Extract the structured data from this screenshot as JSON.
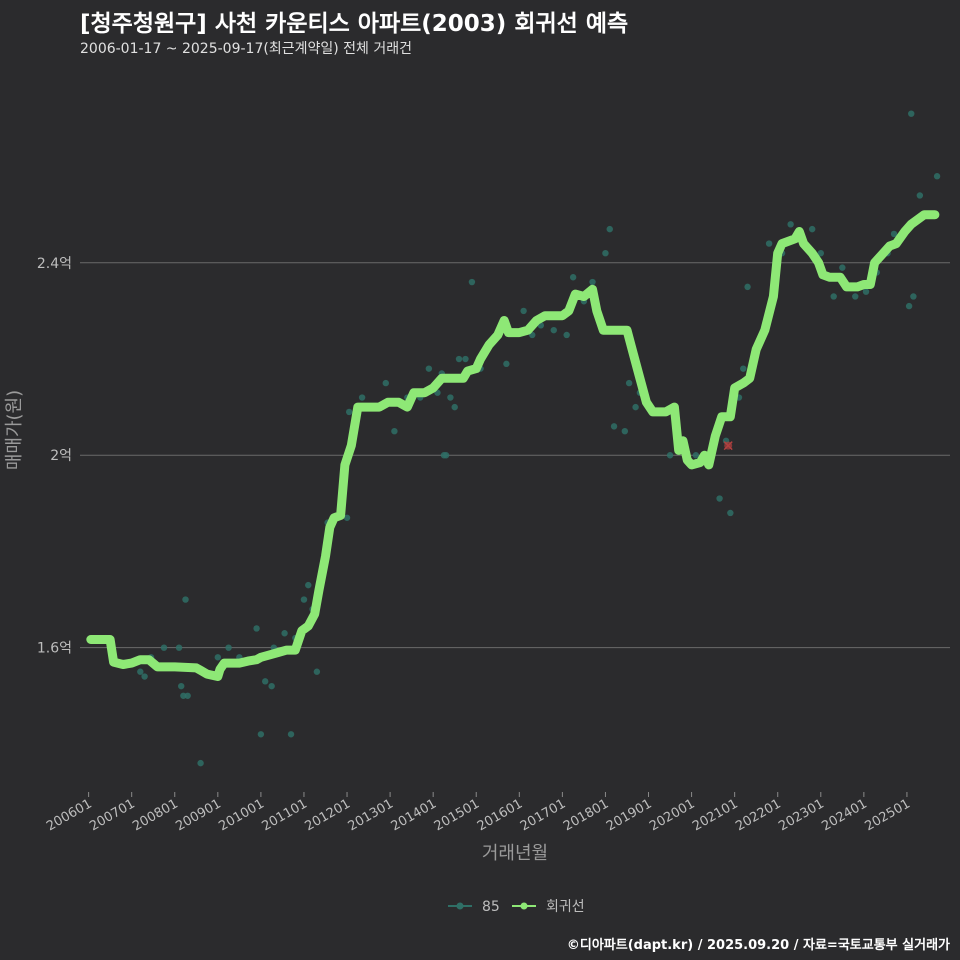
{
  "header": {
    "title": "[청주청원구] 사천 카운티스 아파트(2003) 회귀선 예측",
    "subtitle": "2006-01-17 ~ 2025-09-17(최근계약일) 전체 거래건"
  },
  "footer": {
    "caption": "©디아파트(dapt.kr) / 2025.09.20 / 자료=국토교통부 실거래가"
  },
  "colors": {
    "background": "#2b2b2d",
    "gridline": "#6a6a6a",
    "regression": "#8ee876",
    "scatter": "#2f6f66",
    "outlier": "#b2403f"
  },
  "chart_data": {
    "type": "line",
    "title": "[청주청원구] 사천 카운티스 아파트(2003) 회귀선 예측",
    "xlabel": "거래년월",
    "ylabel": "매매가(원)",
    "ylim": [
      1.3,
      2.78
    ],
    "xlim": [
      2005.8,
      2026.0
    ],
    "y_ticks": [
      {
        "value": 1.6,
        "label": "1.6억"
      },
      {
        "value": 2.0,
        "label": "2억"
      },
      {
        "value": 2.4,
        "label": "2.4억"
      }
    ],
    "x_ticks": [
      {
        "value": 2006,
        "label": "200601"
      },
      {
        "value": 2007,
        "label": "200701"
      },
      {
        "value": 2008,
        "label": "200801"
      },
      {
        "value": 2009,
        "label": "200901"
      },
      {
        "value": 2010,
        "label": "201001"
      },
      {
        "value": 2011,
        "label": "201101"
      },
      {
        "value": 2012,
        "label": "201201"
      },
      {
        "value": 2013,
        "label": "201301"
      },
      {
        "value": 2014,
        "label": "201401"
      },
      {
        "value": 2015,
        "label": "201501"
      },
      {
        "value": 2016,
        "label": "201601"
      },
      {
        "value": 2017,
        "label": "201701"
      },
      {
        "value": 2018,
        "label": "201801"
      },
      {
        "value": 2019,
        "label": "201901"
      },
      {
        "value": 2020,
        "label": "202001"
      },
      {
        "value": 2021,
        "label": "202101"
      },
      {
        "value": 2022,
        "label": "202201"
      },
      {
        "value": 2023,
        "label": "202301"
      },
      {
        "value": 2024,
        "label": "202401"
      },
      {
        "value": 2025,
        "label": "202501"
      }
    ],
    "legend": [
      {
        "name": "85",
        "color": "#2f6f66"
      },
      {
        "name": "회귀선",
        "color": "#8ee876"
      }
    ],
    "series": [
      {
        "name": "회귀선",
        "type": "line",
        "points": [
          [
            2006.05,
            1.617
          ],
          [
            2006.5,
            1.617
          ],
          [
            2006.58,
            1.57
          ],
          [
            2006.8,
            1.565
          ],
          [
            2007.0,
            1.568
          ],
          [
            2007.2,
            1.575
          ],
          [
            2007.4,
            1.575
          ],
          [
            2007.6,
            1.56
          ],
          [
            2008.0,
            1.56
          ],
          [
            2008.5,
            1.558
          ],
          [
            2008.6,
            1.553
          ],
          [
            2008.75,
            1.545
          ],
          [
            2009.0,
            1.54
          ],
          [
            2009.05,
            1.555
          ],
          [
            2009.15,
            1.568
          ],
          [
            2009.5,
            1.568
          ],
          [
            2009.7,
            1.572
          ],
          [
            2009.9,
            1.575
          ],
          [
            2010.0,
            1.58
          ],
          [
            2010.2,
            1.585
          ],
          [
            2010.4,
            1.59
          ],
          [
            2010.6,
            1.595
          ],
          [
            2010.8,
            1.595
          ],
          [
            2010.95,
            1.635
          ],
          [
            2011.1,
            1.645
          ],
          [
            2011.25,
            1.67
          ],
          [
            2011.35,
            1.72
          ],
          [
            2011.5,
            1.79
          ],
          [
            2011.6,
            1.85
          ],
          [
            2011.7,
            1.87
          ],
          [
            2011.85,
            1.875
          ],
          [
            2011.95,
            1.98
          ],
          [
            2012.1,
            2.02
          ],
          [
            2012.25,
            2.1
          ],
          [
            2012.5,
            2.1
          ],
          [
            2012.75,
            2.1
          ],
          [
            2012.95,
            2.11
          ],
          [
            2013.2,
            2.11
          ],
          [
            2013.4,
            2.1
          ],
          [
            2013.55,
            2.13
          ],
          [
            2013.8,
            2.13
          ],
          [
            2014.0,
            2.14
          ],
          [
            2014.2,
            2.16
          ],
          [
            2014.5,
            2.16
          ],
          [
            2014.7,
            2.16
          ],
          [
            2014.8,
            2.175
          ],
          [
            2015.0,
            2.18
          ],
          [
            2015.1,
            2.2
          ],
          [
            2015.3,
            2.23
          ],
          [
            2015.5,
            2.25
          ],
          [
            2015.65,
            2.28
          ],
          [
            2015.75,
            2.255
          ],
          [
            2016.0,
            2.255
          ],
          [
            2016.2,
            2.26
          ],
          [
            2016.4,
            2.28
          ],
          [
            2016.6,
            2.29
          ],
          [
            2016.8,
            2.29
          ],
          [
            2017.0,
            2.29
          ],
          [
            2017.15,
            2.3
          ],
          [
            2017.3,
            2.335
          ],
          [
            2017.5,
            2.33
          ],
          [
            2017.7,
            2.345
          ],
          [
            2017.8,
            2.3
          ],
          [
            2017.95,
            2.26
          ],
          [
            2018.1,
            2.26
          ],
          [
            2018.5,
            2.26
          ],
          [
            2018.65,
            2.21
          ],
          [
            2018.8,
            2.16
          ],
          [
            2018.95,
            2.11
          ],
          [
            2019.1,
            2.09
          ],
          [
            2019.4,
            2.09
          ],
          [
            2019.6,
            2.1
          ],
          [
            2019.7,
            2.01
          ],
          [
            2019.8,
            2.03
          ],
          [
            2019.9,
            1.99
          ],
          [
            2020.0,
            1.98
          ],
          [
            2020.2,
            1.985
          ],
          [
            2020.3,
            2.0
          ],
          [
            2020.4,
            1.98
          ],
          [
            2020.55,
            2.04
          ],
          [
            2020.7,
            2.08
          ],
          [
            2020.9,
            2.08
          ],
          [
            2021.0,
            2.14
          ],
          [
            2021.2,
            2.15
          ],
          [
            2021.35,
            2.16
          ],
          [
            2021.5,
            2.22
          ],
          [
            2021.7,
            2.26
          ],
          [
            2021.9,
            2.33
          ],
          [
            2022.0,
            2.42
          ],
          [
            2022.1,
            2.44
          ],
          [
            2022.4,
            2.45
          ],
          [
            2022.5,
            2.465
          ],
          [
            2022.6,
            2.44
          ],
          [
            2022.8,
            2.42
          ],
          [
            2022.95,
            2.4
          ],
          [
            2023.05,
            2.375
          ],
          [
            2023.2,
            2.37
          ],
          [
            2023.45,
            2.37
          ],
          [
            2023.6,
            2.35
          ],
          [
            2023.85,
            2.35
          ],
          [
            2024.0,
            2.355
          ],
          [
            2024.15,
            2.355
          ],
          [
            2024.25,
            2.4
          ],
          [
            2024.45,
            2.42
          ],
          [
            2024.6,
            2.435
          ],
          [
            2024.75,
            2.44
          ],
          [
            2024.95,
            2.465
          ],
          [
            2025.1,
            2.48
          ],
          [
            2025.25,
            2.49
          ],
          [
            2025.4,
            2.5
          ],
          [
            2025.65,
            2.5
          ]
        ]
      },
      {
        "name": "85",
        "type": "scatter",
        "points": [
          [
            2006.4,
            1.62
          ],
          [
            2007.2,
            1.55
          ],
          [
            2007.3,
            1.54
          ],
          [
            2007.45,
            1.58
          ],
          [
            2007.75,
            1.6
          ],
          [
            2008.1,
            1.6
          ],
          [
            2008.15,
            1.52
          ],
          [
            2008.2,
            1.5
          ],
          [
            2008.25,
            1.7
          ],
          [
            2008.3,
            1.5
          ],
          [
            2008.6,
            1.36
          ],
          [
            2009.0,
            1.58
          ],
          [
            2009.25,
            1.6
          ],
          [
            2009.5,
            1.58
          ],
          [
            2009.9,
            1.64
          ],
          [
            2010.0,
            1.42
          ],
          [
            2010.1,
            1.53
          ],
          [
            2010.25,
            1.52
          ],
          [
            2010.3,
            1.6
          ],
          [
            2010.55,
            1.63
          ],
          [
            2010.7,
            1.42
          ],
          [
            2010.8,
            1.62
          ],
          [
            2011.0,
            1.7
          ],
          [
            2011.1,
            1.73
          ],
          [
            2011.2,
            1.68
          ],
          [
            2011.3,
            1.55
          ],
          [
            2011.55,
            1.86
          ],
          [
            2012.0,
            1.87
          ],
          [
            2012.05,
            2.09
          ],
          [
            2012.35,
            2.12
          ],
          [
            2012.6,
            2.1
          ],
          [
            2012.9,
            2.15
          ],
          [
            2013.1,
            2.05
          ],
          [
            2013.4,
            2.12
          ],
          [
            2013.7,
            2.12
          ],
          [
            2013.9,
            2.18
          ],
          [
            2014.1,
            2.13
          ],
          [
            2014.2,
            2.17
          ],
          [
            2014.25,
            2.0
          ],
          [
            2014.3,
            2.0
          ],
          [
            2014.4,
            2.12
          ],
          [
            2014.5,
            2.1
          ],
          [
            2014.6,
            2.2
          ],
          [
            2014.75,
            2.2
          ],
          [
            2014.9,
            2.36
          ],
          [
            2015.1,
            2.18
          ],
          [
            2015.5,
            2.25
          ],
          [
            2015.7,
            2.19
          ],
          [
            2016.1,
            2.3
          ],
          [
            2016.3,
            2.25
          ],
          [
            2016.5,
            2.27
          ],
          [
            2016.8,
            2.26
          ],
          [
            2017.1,
            2.25
          ],
          [
            2017.25,
            2.37
          ],
          [
            2017.5,
            2.32
          ],
          [
            2017.7,
            2.36
          ],
          [
            2018.0,
            2.42
          ],
          [
            2018.1,
            2.47
          ],
          [
            2018.2,
            2.06
          ],
          [
            2018.45,
            2.05
          ],
          [
            2018.55,
            2.15
          ],
          [
            2018.7,
            2.1
          ],
          [
            2018.8,
            2.13
          ],
          [
            2019.0,
            2.1
          ],
          [
            2019.5,
            2.0
          ],
          [
            2020.1,
            2.0
          ],
          [
            2020.4,
            1.98
          ],
          [
            2020.65,
            1.91
          ],
          [
            2020.8,
            2.03
          ],
          [
            2020.9,
            1.88
          ],
          [
            2021.1,
            2.12
          ],
          [
            2021.2,
            2.18
          ],
          [
            2021.3,
            2.35
          ],
          [
            2021.5,
            2.22
          ],
          [
            2021.8,
            2.44
          ],
          [
            2021.9,
            2.35
          ],
          [
            2022.1,
            2.42
          ],
          [
            2022.3,
            2.48
          ],
          [
            2022.8,
            2.47
          ],
          [
            2023.0,
            2.42
          ],
          [
            2023.3,
            2.33
          ],
          [
            2023.5,
            2.39
          ],
          [
            2023.8,
            2.33
          ],
          [
            2024.05,
            2.34
          ],
          [
            2024.3,
            2.38
          ],
          [
            2024.55,
            2.42
          ],
          [
            2024.7,
            2.46
          ],
          [
            2025.05,
            2.31
          ],
          [
            2025.1,
            2.71
          ],
          [
            2025.15,
            2.33
          ],
          [
            2025.3,
            2.54
          ],
          [
            2025.7,
            2.58
          ]
        ]
      },
      {
        "name": "outlier",
        "type": "scatter",
        "points": [
          [
            2020.85,
            2.02
          ]
        ]
      }
    ]
  }
}
